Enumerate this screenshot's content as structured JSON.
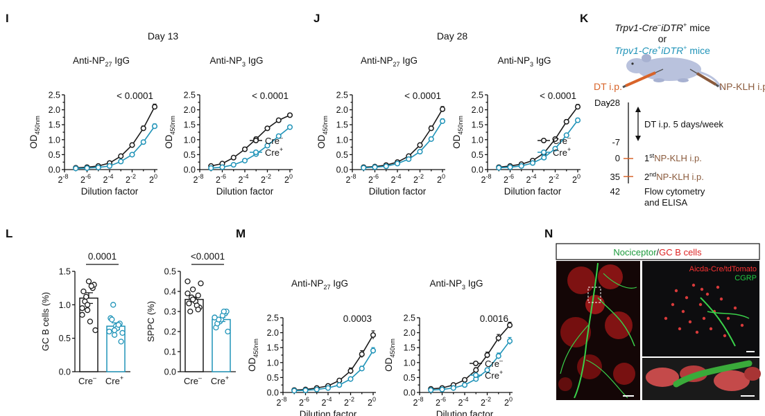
{
  "panel_labels": [
    "I",
    "J",
    "K",
    "L",
    "M",
    "N"
  ],
  "colors": {
    "cre_minus": "#1a1a1a",
    "cre_plus": "#1f93b8",
    "orange": "#d8642a",
    "brown": "#8a5a3c",
    "micro_label_red": "#ff3333",
    "micro_label_green": "#22cc44"
  },
  "headers": {
    "i": "Day 13",
    "j": "Day 28"
  },
  "k": {
    "line1": "Trpv1-Cre",
    "line1_sup1": "–",
    "line1_mid": "iDTR",
    "line1_sup2": "+",
    "line1_tail": " mice",
    "or": "or",
    "line2": "Trpv1-Cre",
    "line2_sup1": "+",
    "line2_mid": "iDTR",
    "line2_sup2": "+",
    "line2_tail": " mice",
    "dt": "DT i.p.",
    "np": "NP-KLH i.p. twice",
    "day_label": "Day",
    "days": [
      "-28",
      "-7",
      "0",
      "35",
      "42"
    ],
    "dt_period": "DT i.p. 5 days/week",
    "first_sup": "st",
    "first_np": "NP-KLH i.p.",
    "second_sup": "nd",
    "second_np": "NP-KLH i.p.",
    "flow1": "Flow cytometry",
    "flow2": "and ELISA"
  },
  "n": {
    "title_green": "Nociceptor",
    "slash": "/",
    "title_red": "GC B cells",
    "label_red": "Aicda-Cre/tdTomato",
    "label_green": "CGRP"
  },
  "chart_data": [
    {
      "id": "I1",
      "type": "line",
      "title": "Anti-NP",
      "title_sub": "27",
      "title_tail": " IgG",
      "ylabel": "OD",
      "ylabel_sub": "450nm",
      "xlabel": "Dilution factor",
      "ylim": [
        0,
        2.5
      ],
      "yticks": [
        "0.0",
        "0.5",
        "1.0",
        "1.5",
        "2.0",
        "2.5"
      ],
      "xlim": [
        -8,
        0
      ],
      "xticks": [
        {
          "exp": "-8"
        },
        {
          "exp": "-6"
        },
        {
          "exp": "-4"
        },
        {
          "exp": "-2"
        },
        {
          "exp": "0"
        }
      ],
      "pvalue": "< 0.0001",
      "legend": false,
      "x": [
        -7,
        -6,
        -5,
        -4,
        -3,
        -2,
        -1,
        0
      ],
      "series": [
        {
          "name": "Cre–",
          "values": [
            0.06,
            0.08,
            0.12,
            0.22,
            0.45,
            0.82,
            1.38,
            2.1
          ],
          "err": [
            0.02,
            0.02,
            0.03,
            0.04,
            0.06,
            0.07,
            0.08,
            0.09
          ]
        },
        {
          "name": "Cre+",
          "values": [
            0.04,
            0.05,
            0.07,
            0.12,
            0.27,
            0.5,
            0.92,
            1.45
          ],
          "err": [
            0.01,
            0.01,
            0.02,
            0.02,
            0.04,
            0.05,
            0.06,
            0.08
          ]
        }
      ]
    },
    {
      "id": "I2",
      "type": "line",
      "title": "Anti-NP",
      "title_sub": "3",
      "title_tail": " IgG",
      "ylabel": "OD",
      "ylabel_sub": "450nm",
      "xlabel": "Dilution factor",
      "ylim": [
        0,
        2.5
      ],
      "yticks": [
        "0.0",
        "0.5",
        "1.0",
        "1.5",
        "2.0",
        "2.5"
      ],
      "xlim": [
        -8,
        0
      ],
      "xticks": [
        {
          "exp": "-8"
        },
        {
          "exp": "-6"
        },
        {
          "exp": "-4"
        },
        {
          "exp": "-2"
        },
        {
          "exp": "0"
        }
      ],
      "pvalue": "< 0.0001",
      "legend": true,
      "x": [
        -7,
        -6,
        -5,
        -4,
        -3,
        -2,
        -1,
        0
      ],
      "series": [
        {
          "name": "Cre–",
          "values": [
            0.12,
            0.2,
            0.4,
            0.68,
            1.02,
            1.38,
            1.65,
            1.82
          ],
          "err": [
            0.03,
            0.03,
            0.05,
            0.07,
            0.07,
            0.06,
            0.06,
            0.05
          ]
        },
        {
          "name": "Cre+",
          "values": [
            0.05,
            0.08,
            0.16,
            0.3,
            0.52,
            0.8,
            1.12,
            1.42
          ],
          "err": [
            0.01,
            0.02,
            0.03,
            0.03,
            0.04,
            0.04,
            0.04,
            0.04
          ]
        }
      ]
    },
    {
      "id": "J1",
      "type": "line",
      "title": "Anti-NP",
      "title_sub": "27",
      "title_tail": " IgG",
      "ylabel": "OD",
      "ylabel_sub": "450nm",
      "xlabel": "Dilution factor",
      "ylim": [
        0,
        2.5
      ],
      "yticks": [
        "0.0",
        "0.5",
        "1.0",
        "1.5",
        "2.0",
        "2.5"
      ],
      "xlim": [
        -8,
        0
      ],
      "xticks": [
        {
          "exp": "-8"
        },
        {
          "exp": "-6"
        },
        {
          "exp": "-4"
        },
        {
          "exp": "-2"
        },
        {
          "exp": "0"
        }
      ],
      "pvalue": "< 0.0001",
      "legend": false,
      "x": [
        -7,
        -6,
        -5,
        -4,
        -3,
        -2,
        -1,
        0
      ],
      "series": [
        {
          "name": "Cre–",
          "values": [
            0.08,
            0.1,
            0.15,
            0.25,
            0.45,
            0.82,
            1.38,
            2.02
          ],
          "err": [
            0.02,
            0.02,
            0.02,
            0.03,
            0.04,
            0.06,
            0.08,
            0.09
          ]
        },
        {
          "name": "Cre+",
          "values": [
            0.06,
            0.08,
            0.11,
            0.2,
            0.35,
            0.6,
            1.02,
            1.62
          ],
          "err": [
            0.01,
            0.02,
            0.02,
            0.03,
            0.03,
            0.05,
            0.07,
            0.08
          ]
        }
      ]
    },
    {
      "id": "J2",
      "type": "line",
      "title": "Anti-NP",
      "title_sub": "3",
      "title_tail": " IgG",
      "ylabel": "OD",
      "ylabel_sub": "450nm",
      "xlabel": "Dilution factor",
      "ylim": [
        0,
        2.5
      ],
      "yticks": [
        "0.0",
        "0.5",
        "1.0",
        "1.5",
        "2.0",
        "2.5"
      ],
      "xlim": [
        -8,
        0
      ],
      "xticks": [
        {
          "exp": "-8"
        },
        {
          "exp": "-6"
        },
        {
          "exp": "-4"
        },
        {
          "exp": "-2"
        },
        {
          "exp": "0"
        }
      ],
      "pvalue": "< 0.0001",
      "legend": true,
      "x": [
        -7,
        -6,
        -5,
        -4,
        -3,
        -2,
        -1,
        0
      ],
      "series": [
        {
          "name": "Cre–",
          "values": [
            0.08,
            0.12,
            0.18,
            0.3,
            0.55,
            1.02,
            1.6,
            2.1
          ],
          "err": [
            0.02,
            0.02,
            0.03,
            0.03,
            0.05,
            0.06,
            0.07,
            0.08
          ]
        },
        {
          "name": "Cre+",
          "values": [
            0.06,
            0.08,
            0.12,
            0.22,
            0.4,
            0.7,
            1.15,
            1.65
          ],
          "err": [
            0.01,
            0.02,
            0.02,
            0.03,
            0.04,
            0.05,
            0.06,
            0.07
          ]
        }
      ]
    },
    {
      "id": "L1",
      "type": "bar",
      "ylabel": "GC B cells (%)",
      "ylim": [
        0,
        1.5
      ],
      "yticks": [
        "0.0",
        "0.5",
        "1.0",
        "1.5"
      ],
      "categories": [
        "Cre",
        "Cre"
      ],
      "category_sups": [
        "–",
        "+"
      ],
      "means": [
        1.1,
        0.68
      ],
      "sem": [
        0.08,
        0.05
      ],
      "pvalue": "0.0001",
      "points": [
        [
          0.95,
          0.92,
          1.25,
          1.2,
          1.35,
          1.3,
          1.05,
          0.75,
          0.62,
          1.12,
          1.28,
          0.85,
          1.0
        ],
        [
          0.6,
          0.55,
          0.72,
          0.8,
          0.68,
          0.45,
          0.78,
          0.65,
          0.58,
          1.0,
          0.7,
          0.6,
          0.62
        ]
      ]
    },
    {
      "id": "L2",
      "type": "bar",
      "ylabel": "SPPC (%)",
      "ylim": [
        0,
        0.5
      ],
      "yticks": [
        "0.0",
        "0.1",
        "0.2",
        "0.3",
        "0.4",
        "0.5"
      ],
      "categories": [
        "Cre",
        "Cre"
      ],
      "category_sups": [
        "–",
        "+"
      ],
      "means": [
        0.36,
        0.26
      ],
      "sem": [
        0.012,
        0.01
      ],
      "pvalue": "<0.0001",
      "points": [
        [
          0.45,
          0.41,
          0.38,
          0.34,
          0.36,
          0.32,
          0.3,
          0.35,
          0.44,
          0.37,
          0.33,
          0.39,
          0.36,
          0.31
        ],
        [
          0.27,
          0.25,
          0.29,
          0.22,
          0.26,
          0.3,
          0.24,
          0.28,
          0.2,
          0.26,
          0.3,
          0.27
        ]
      ]
    },
    {
      "id": "M1",
      "type": "line",
      "title": "Anti-NP",
      "title_sub": "27",
      "title_tail": " IgG",
      "ylabel": "OD",
      "ylabel_sub": "450nm",
      "xlabel": "Dilution factor",
      "ylim": [
        0,
        2.5
      ],
      "yticks": [
        "0.0",
        "0.5",
        "1.0",
        "1.5",
        "2.0",
        "2.5"
      ],
      "xlim": [
        -8,
        0
      ],
      "xticks": [
        {
          "exp": "-8"
        },
        {
          "exp": "-6"
        },
        {
          "exp": "-4"
        },
        {
          "exp": "-2"
        },
        {
          "exp": "0"
        }
      ],
      "pvalue": "0.0003",
      "legend": false,
      "x": [
        -7,
        -6,
        -5,
        -4,
        -3,
        -2,
        -1,
        0
      ],
      "series": [
        {
          "name": "Cre–",
          "values": [
            0.08,
            0.1,
            0.15,
            0.22,
            0.4,
            0.72,
            1.28,
            1.92
          ],
          "err": [
            0.02,
            0.02,
            0.03,
            0.04,
            0.06,
            0.1,
            0.12,
            0.14
          ]
        },
        {
          "name": "Cre+",
          "values": [
            0.06,
            0.07,
            0.1,
            0.15,
            0.25,
            0.45,
            0.8,
            1.4
          ],
          "err": [
            0.01,
            0.02,
            0.02,
            0.03,
            0.04,
            0.06,
            0.08,
            0.1
          ]
        }
      ]
    },
    {
      "id": "M2",
      "type": "line",
      "title": "Anti-NP",
      "title_sub": "3",
      "title_tail": " IgG",
      "ylabel": "OD",
      "ylabel_sub": "450nm",
      "xlabel": "Dilution factor",
      "ylim": [
        0,
        2.5
      ],
      "yticks": [
        "0.0",
        "0.5",
        "1.0",
        "1.5",
        "2.0",
        "2.5"
      ],
      "xlim": [
        -8,
        0
      ],
      "xticks": [
        {
          "exp": "-8"
        },
        {
          "exp": "-6"
        },
        {
          "exp": "-4"
        },
        {
          "exp": "-2"
        },
        {
          "exp": "0"
        }
      ],
      "pvalue": "0.0016",
      "legend": true,
      "x": [
        -7,
        -6,
        -5,
        -4,
        -3,
        -2,
        -1,
        0
      ],
      "series": [
        {
          "name": "Cre–",
          "values": [
            0.12,
            0.15,
            0.25,
            0.42,
            0.75,
            1.25,
            1.82,
            2.25
          ],
          "err": [
            0.03,
            0.03,
            0.04,
            0.06,
            0.08,
            0.1,
            0.12,
            0.1
          ]
        },
        {
          "name": "Cre+",
          "values": [
            0.08,
            0.1,
            0.15,
            0.25,
            0.45,
            0.75,
            1.22,
            1.72
          ],
          "err": [
            0.02,
            0.02,
            0.03,
            0.04,
            0.05,
            0.07,
            0.1,
            0.12
          ]
        }
      ]
    }
  ]
}
